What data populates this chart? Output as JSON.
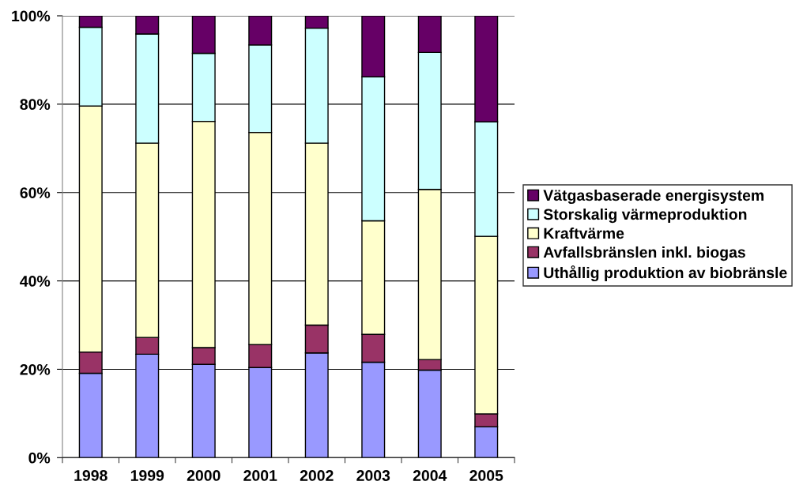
{
  "chart_data": {
    "type": "bar",
    "stacked": true,
    "categories": [
      "1998",
      "1999",
      "2000",
      "2001",
      "2002",
      "2003",
      "2004",
      "2005"
    ],
    "series": [
      {
        "name": "Uthållig produktion av biobränsle",
        "color": "#9999ff",
        "values": [
          19.1,
          23.4,
          21.1,
          20.4,
          23.7,
          21.6,
          19.8,
          7.0
        ]
      },
      {
        "name": "Avfallsbränslen inkl. biogas",
        "color": "#993366",
        "values": [
          4.8,
          3.8,
          3.8,
          5.2,
          6.3,
          6.3,
          2.4,
          2.9
        ]
      },
      {
        "name": "Kraftvärme",
        "color": "#ffffcc",
        "values": [
          55.7,
          44.0,
          51.2,
          48.0,
          41.2,
          25.7,
          38.5,
          40.2
        ]
      },
      {
        "name": "Storskalig värmeproduktion",
        "color": "#ccffff",
        "values": [
          17.8,
          24.7,
          15.4,
          19.8,
          26.0,
          32.6,
          31.0,
          25.9
        ]
      },
      {
        "name": "Vätgasbaserade energisystem",
        "color": "#660066",
        "values": [
          2.6,
          4.1,
          8.5,
          6.6,
          2.8,
          13.8,
          8.3,
          24.0
        ]
      }
    ],
    "ylim": [
      0,
      100
    ],
    "yticks": [
      {
        "value": 0,
        "label": "0%"
      },
      {
        "value": 20,
        "label": "20%"
      },
      {
        "value": 40,
        "label": "40%"
      },
      {
        "value": 60,
        "label": "60%"
      },
      {
        "value": 80,
        "label": "80%"
      },
      {
        "value": 100,
        "label": "100%"
      }
    ],
    "grid": "y",
    "legend": "right"
  }
}
